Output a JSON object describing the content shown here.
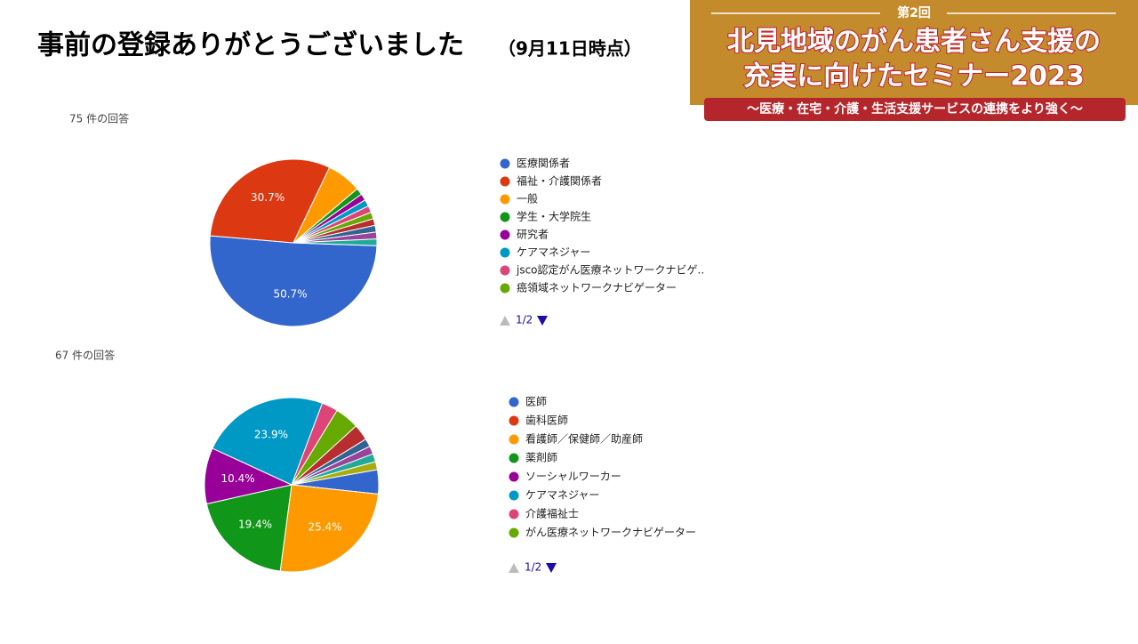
{
  "title": "事前の登録ありがとうございました",
  "title_note": "（9月11日時点）",
  "banner": {
    "edition": "第2回",
    "line1": "北見地域のがん患者さん支援の",
    "line2": "充実に向けたセミナー2023",
    "subtitle": "～医療・在宅・介護・生活支援サービスの連携をより強く～"
  },
  "chart_data": [
    {
      "type": "pie",
      "subtitle": "75 件の回答",
      "pager": "1/2",
      "categories": [
        "医療関係者",
        "福祉・介護関係者",
        "一般",
        "学生・大学院生",
        "研究者",
        "ケアマネジャー",
        "jsco認定がん医療ネットワークナビゲ..",
        "癌領域ネットワークナビゲーター",
        null,
        null,
        null,
        null
      ],
      "values": [
        50.7,
        30.7,
        6.7,
        1.3,
        1.3,
        1.3,
        1.3,
        1.3,
        1.3,
        1.3,
        1.3,
        1.3
      ],
      "value_labels": [
        "50.7%",
        "30.7%",
        null,
        null,
        null,
        null,
        null,
        null,
        null,
        null,
        null,
        null
      ],
      "colors": [
        "#3366cc",
        "#dc3912",
        "#ff9900",
        "#109618",
        "#990099",
        "#0099c6",
        "#dd4477",
        "#66aa00",
        "#b82e2e",
        "#316395",
        "#994499",
        "#22aa99"
      ]
    },
    {
      "type": "pie",
      "subtitle": "67 件の回答",
      "pager": "1/2",
      "categories": [
        "医師",
        "歯科医師",
        "看護師／保健師／助産師",
        "薬剤師",
        "ソーシャルワーカー",
        "ケアマネジャー",
        "介護福祉士",
        "がん医療ネットワークナビゲーター",
        null,
        null,
        null,
        null,
        null
      ],
      "values": [
        4.5,
        0,
        25.4,
        19.4,
        10.4,
        23.9,
        3.0,
        4.5,
        3.0,
        1.5,
        1.5,
        1.5,
        1.5
      ],
      "value_labels": [
        null,
        null,
        "25.4%",
        "19.4%",
        "10.4%",
        "23.9%",
        null,
        null,
        null,
        null,
        null,
        null,
        null
      ],
      "colors": [
        "#3366cc",
        "#dc3912",
        "#ff9900",
        "#109618",
        "#990099",
        "#0099c6",
        "#dd4477",
        "#66aa00",
        "#b82e2e",
        "#316395",
        "#994499",
        "#22aa99",
        "#aaaa11"
      ]
    }
  ]
}
